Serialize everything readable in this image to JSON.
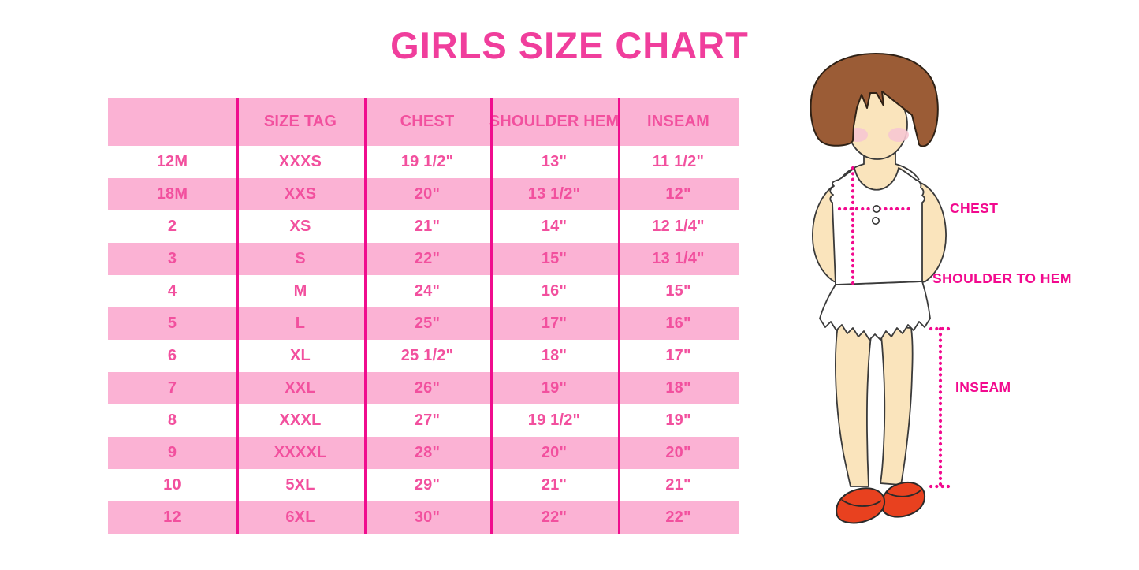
{
  "title": "GIRLS SIZE CHART",
  "chart_data": {
    "type": "table",
    "title": "GIRLS SIZE CHART",
    "columns": [
      "",
      "SIZE TAG",
      "CHEST",
      "SHOULDER HEM",
      "INSEAM"
    ],
    "rows": [
      [
        "12M",
        "XXXS",
        "19 1/2\"",
        "13\"",
        "11 1/2\""
      ],
      [
        "18M",
        "XXS",
        "20\"",
        "13 1/2\"",
        "12\""
      ],
      [
        "2",
        "XS",
        "21\"",
        "14\"",
        "12 1/4\""
      ],
      [
        "3",
        "S",
        "22\"",
        "15\"",
        "13 1/4\""
      ],
      [
        "4",
        "M",
        "24\"",
        "16\"",
        "15\""
      ],
      [
        "5",
        "L",
        "25\"",
        "17\"",
        "16\""
      ],
      [
        "6",
        "XL",
        "25 1/2\"",
        "18\"",
        "17\""
      ],
      [
        "7",
        "XXL",
        "26\"",
        "19\"",
        "18\""
      ],
      [
        "8",
        "XXXL",
        "27\"",
        "19 1/2\"",
        "19\""
      ],
      [
        "9",
        "XXXXL",
        "28\"",
        "20\"",
        "20\""
      ],
      [
        "10",
        "5XL",
        "29\"",
        "21\"",
        "21\""
      ],
      [
        "12",
        "6XL",
        "30\"",
        "22\"",
        "22\""
      ]
    ],
    "row_striping": "white and pink alternating, header pink"
  },
  "figure": {
    "labels": {
      "chest": "CHEST",
      "shoulder_to_hem": "SHOULDER TO HEM",
      "inseam": "INSEAM"
    }
  },
  "colors": {
    "title_pink": "#F03E9C",
    "table_text_pink": "#F2509E",
    "band_pink": "#FBB2D4",
    "divider_magenta": "#F00D8E",
    "label_magenta": "#F2098E",
    "hair_brown": "#9B5C36",
    "skin": "#FAE4BC",
    "blush": "#F6C6D2",
    "shoe_red": "#E8411F"
  }
}
